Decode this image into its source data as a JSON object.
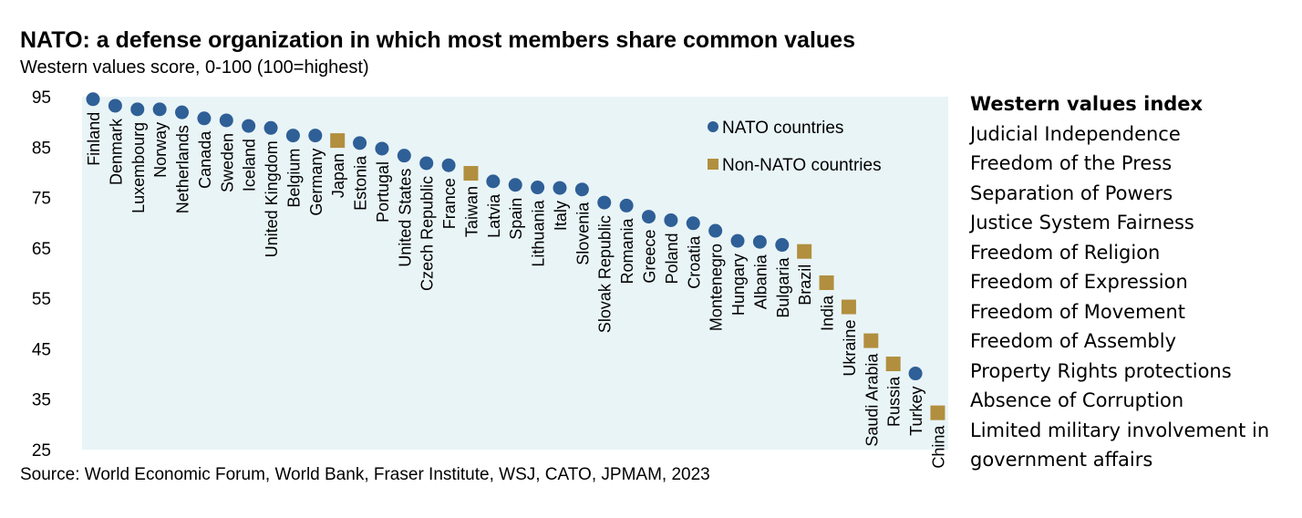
{
  "header": {
    "title": "NATO: a defense organization in which most members share common values",
    "subtitle": "Western values score, 0-100 (100=highest)"
  },
  "footer": {
    "source": "Source: World Economic Forum, World Bank, Fraser Institute, WSJ, CATO, JPMAM, 2023"
  },
  "sidebar": {
    "heading": "Western values index",
    "items": [
      "Judicial Independence",
      "Freedom of the Press",
      "Separation of Powers",
      "Justice System Fairness",
      "Freedom of Religion",
      "Freedom of Expression",
      "Freedom of Movement",
      "Freedom of Assembly",
      "Property Rights protections",
      "Absence of Corruption",
      "Limited military involvement in",
      "government affairs"
    ]
  },
  "colors": {
    "plot_background": "#e9f4f7",
    "nato": "#2e5f96",
    "non_nato": "#b18f3f"
  },
  "chart_data": {
    "type": "scatter",
    "ylim": [
      25,
      95
    ],
    "yticks": [
      95,
      85,
      75,
      65,
      55,
      45,
      35,
      25
    ],
    "grid": false,
    "legend_position": "top-right",
    "legend": [
      {
        "key": "nato",
        "label": "NATO countries",
        "marker": "circle"
      },
      {
        "key": "non_nato",
        "label": "Non-NATO countries",
        "marker": "square"
      }
    ],
    "points": [
      {
        "country": "Finland",
        "value": 94.5,
        "group": "nato"
      },
      {
        "country": "Denmark",
        "value": 93.2,
        "group": "nato"
      },
      {
        "country": "Luxembourg",
        "value": 92.5,
        "group": "nato"
      },
      {
        "country": "Norway",
        "value": 92.5,
        "group": "nato"
      },
      {
        "country": "Netherlands",
        "value": 91.9,
        "group": "nato"
      },
      {
        "country": "Canada",
        "value": 90.7,
        "group": "nato"
      },
      {
        "country": "Sweden",
        "value": 90.3,
        "group": "nato"
      },
      {
        "country": "Iceland",
        "value": 89.2,
        "group": "nato"
      },
      {
        "country": "United Kingdom",
        "value": 88.8,
        "group": "nato"
      },
      {
        "country": "Belgium",
        "value": 87.3,
        "group": "nato"
      },
      {
        "country": "Germany",
        "value": 87.3,
        "group": "nato"
      },
      {
        "country": "Japan",
        "value": 86.3,
        "group": "non_nato"
      },
      {
        "country": "Estonia",
        "value": 85.8,
        "group": "nato"
      },
      {
        "country": "Portugal",
        "value": 84.7,
        "group": "nato"
      },
      {
        "country": "United States",
        "value": 83.3,
        "group": "nato"
      },
      {
        "country": "Czech Republic",
        "value": 81.8,
        "group": "nato"
      },
      {
        "country": "France",
        "value": 81.4,
        "group": "nato"
      },
      {
        "country": "Taiwan",
        "value": 79.8,
        "group": "non_nato"
      },
      {
        "country": "Latvia",
        "value": 78.2,
        "group": "nato"
      },
      {
        "country": "Spain",
        "value": 77.5,
        "group": "nato"
      },
      {
        "country": "Lithuania",
        "value": 77.0,
        "group": "nato"
      },
      {
        "country": "Italy",
        "value": 76.9,
        "group": "nato"
      },
      {
        "country": "Slovenia",
        "value": 76.6,
        "group": "nato"
      },
      {
        "country": "Slovak Republic",
        "value": 74.0,
        "group": "nato"
      },
      {
        "country": "Romania",
        "value": 73.4,
        "group": "nato"
      },
      {
        "country": "Greece",
        "value": 71.2,
        "group": "nato"
      },
      {
        "country": "Poland",
        "value": 70.5,
        "group": "nato"
      },
      {
        "country": "Croatia",
        "value": 69.9,
        "group": "nato"
      },
      {
        "country": "Montenegro",
        "value": 68.4,
        "group": "nato"
      },
      {
        "country": "Hungary",
        "value": 66.4,
        "group": "nato"
      },
      {
        "country": "Albania",
        "value": 66.2,
        "group": "nato"
      },
      {
        "country": "Bulgaria",
        "value": 65.6,
        "group": "nato"
      },
      {
        "country": "Brazil",
        "value": 64.3,
        "group": "non_nato"
      },
      {
        "country": "India",
        "value": 58.1,
        "group": "non_nato"
      },
      {
        "country": "Ukraine",
        "value": 53.3,
        "group": "non_nato"
      },
      {
        "country": "Saudi Arabia",
        "value": 46.6,
        "group": "non_nato"
      },
      {
        "country": "Russia",
        "value": 42.0,
        "group": "non_nato"
      },
      {
        "country": "Turkey",
        "value": 40.1,
        "group": "nato"
      },
      {
        "country": "China",
        "value": 32.3,
        "group": "non_nato"
      }
    ]
  }
}
